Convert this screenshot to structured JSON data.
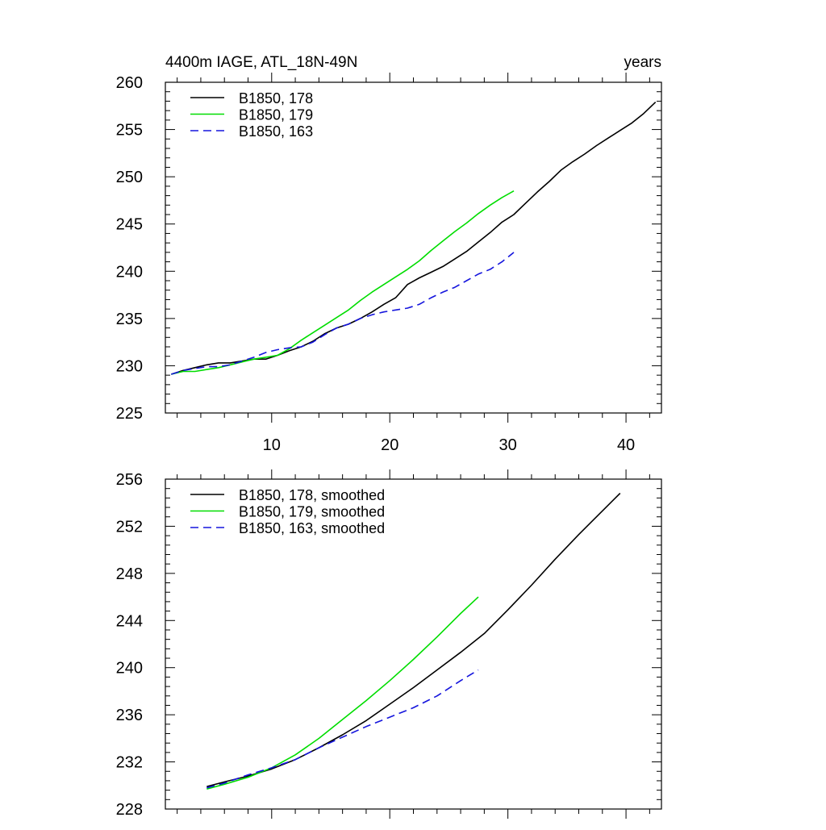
{
  "chart_data": [
    {
      "type": "line",
      "title": "4400m IAGE, ATL_18N-49N",
      "right_title": "years",
      "xlim": [
        1,
        43
      ],
      "ylim": [
        225,
        260
      ],
      "xticks": [
        10,
        20,
        30,
        40
      ],
      "xtick_labels": [
        "10",
        "20",
        "30",
        "40"
      ],
      "yticks": [
        225,
        230,
        235,
        240,
        245,
        250,
        255,
        260
      ],
      "ytick_labels": [
        "225",
        "230",
        "235",
        "240",
        "245",
        "250",
        "255",
        "260"
      ],
      "legend_position": "top-left",
      "series": [
        {
          "name": "B1850, 178",
          "color": "#000000",
          "dash": "solid",
          "x": [
            1.5,
            2.5,
            3.5,
            4.5,
            5.5,
            6.5,
            7.5,
            8.5,
            9.5,
            10.5,
            11.5,
            12.5,
            13.5,
            14.5,
            15.5,
            16.5,
            17.5,
            18.5,
            19.5,
            20.5,
            21.5,
            22.5,
            23.5,
            24.5,
            25.5,
            26.5,
            27.5,
            28.5,
            29.5,
            30.5,
            31.5,
            32.5,
            33.5,
            34.5,
            35.5,
            36.5,
            37.5,
            38.5,
            39.5,
            40.5,
            41.5,
            42.5
          ],
          "y": [
            229.1,
            229.5,
            229.8,
            230.1,
            230.3,
            230.3,
            230.5,
            230.7,
            230.7,
            231.1,
            231.6,
            232.0,
            232.6,
            233.4,
            234.0,
            234.4,
            235.0,
            235.7,
            236.5,
            237.2,
            238.6,
            239.3,
            239.9,
            240.5,
            241.3,
            242.1,
            243.1,
            244.1,
            245.2,
            246.0,
            247.2,
            248.4,
            249.5,
            250.7,
            251.6,
            252.4,
            253.3,
            254.1,
            254.9,
            255.7,
            256.7,
            257.9
          ]
        },
        {
          "name": "B1850, 179",
          "color": "#00dd00",
          "dash": "solid",
          "x": [
            1.5,
            2.5,
            3.5,
            4.5,
            5.5,
            6.5,
            7.5,
            8.5,
            9.5,
            10.5,
            11.5,
            12.5,
            13.5,
            14.5,
            15.5,
            16.5,
            17.5,
            18.5,
            19.5,
            20.5,
            21.5,
            22.5,
            23.5,
            24.5,
            25.5,
            26.5,
            27.5,
            28.5,
            29.5,
            30.5
          ],
          "y": [
            229.1,
            229.4,
            229.4,
            229.6,
            229.8,
            230.1,
            230.4,
            230.7,
            230.9,
            231.1,
            231.8,
            232.7,
            233.5,
            234.3,
            235.1,
            235.9,
            236.9,
            237.8,
            238.6,
            239.4,
            240.2,
            241.1,
            242.2,
            243.2,
            244.2,
            245.1,
            246.1,
            247.0,
            247.8,
            248.5
          ]
        },
        {
          "name": "B1850, 163",
          "color": "#1515dd",
          "dash": "dashed",
          "x": [
            1.5,
            2.5,
            3.5,
            4.5,
            5.5,
            6.5,
            7.5,
            8.5,
            9.5,
            10.5,
            11.5,
            12.5,
            13.5,
            14.5,
            15.5,
            16.5,
            17.5,
            18.5,
            19.5,
            20.5,
            21.5,
            22.5,
            23.5,
            24.5,
            25.5,
            26.5,
            27.5,
            28.5,
            29.5,
            30.5
          ],
          "y": [
            229.1,
            229.5,
            229.7,
            229.9,
            229.9,
            230.1,
            230.5,
            230.9,
            231.4,
            231.7,
            231.9,
            232.0,
            232.5,
            233.3,
            234.0,
            234.4,
            235.0,
            235.4,
            235.7,
            235.9,
            236.1,
            236.5,
            237.2,
            237.8,
            238.3,
            239.0,
            239.7,
            240.2,
            241.0,
            242.0
          ]
        }
      ]
    },
    {
      "type": "line",
      "title": "",
      "xlim": [
        1,
        43
      ],
      "ylim": [
        228,
        256
      ],
      "xticks": [
        10,
        20,
        30,
        40
      ],
      "xtick_labels": [
        "",
        "",
        "",
        ""
      ],
      "yticks": [
        228,
        232,
        236,
        240,
        244,
        248,
        252,
        256
      ],
      "ytick_labels": [
        "228",
        "232",
        "236",
        "240",
        "244",
        "248",
        "252",
        "256"
      ],
      "legend_position": "top-left",
      "series": [
        {
          "name": "B1850, 178, smoothed",
          "color": "#000000",
          "dash": "solid",
          "x": [
            4.5,
            6,
            8,
            10,
            12,
            14,
            16,
            18,
            20,
            22,
            24,
            26,
            28,
            30,
            32,
            34,
            36,
            38,
            39.5
          ],
          "y": [
            229.9,
            230.3,
            230.8,
            231.4,
            232.2,
            233.2,
            234.3,
            235.5,
            236.9,
            238.3,
            239.8,
            241.3,
            242.9,
            244.9,
            247.0,
            249.2,
            251.3,
            253.3,
            254.8
          ]
        },
        {
          "name": "B1850, 179, smoothed",
          "color": "#00dd00",
          "dash": "solid",
          "x": [
            4.5,
            6,
            8,
            10,
            12,
            14,
            16,
            18,
            20,
            22,
            24,
            26,
            27.5
          ],
          "y": [
            229.7,
            230.1,
            230.7,
            231.5,
            232.6,
            234.0,
            235.6,
            237.2,
            238.9,
            240.7,
            242.6,
            244.6,
            246.0
          ]
        },
        {
          "name": "B1850, 163, smoothed",
          "color": "#1515dd",
          "dash": "dashed",
          "x": [
            4.5,
            6,
            8,
            10,
            12,
            14,
            16,
            18,
            20,
            22,
            24,
            26,
            27.5
          ],
          "y": [
            229.8,
            230.2,
            230.9,
            231.5,
            232.2,
            233.2,
            234.1,
            235.0,
            235.8,
            236.6,
            237.6,
            238.9,
            239.8
          ]
        }
      ]
    }
  ]
}
